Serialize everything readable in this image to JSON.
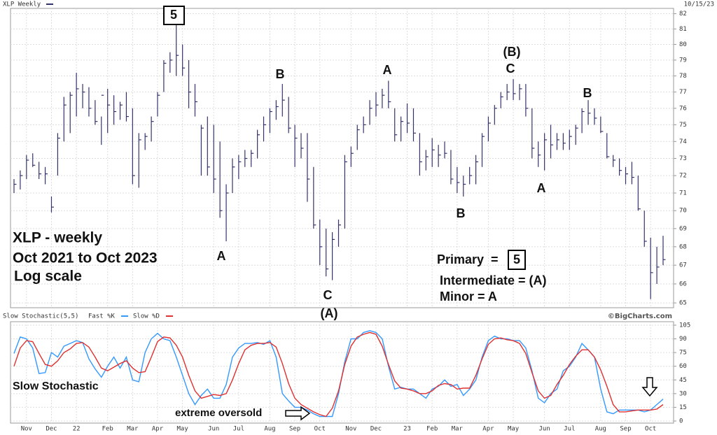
{
  "chart_data": [
    {
      "type": "ohlc",
      "title": "XLP Weekly",
      "date": "10/15/23",
      "log": true,
      "grid": true,
      "ylim": [
        64.75,
        82.35
      ],
      "yticks": [
        65,
        66,
        67,
        68,
        69,
        70,
        71,
        72,
        73,
        74,
        75,
        76,
        77,
        78,
        79,
        80,
        81,
        82
      ],
      "series": [
        {
          "name": "XLP Weekly",
          "color": "#33336b",
          "high": [
            71.8,
            72.3,
            73.2,
            73.3,
            72.8,
            72.5,
            70.8,
            74.5,
            76.7,
            77,
            78.2,
            77.5,
            77.3,
            76.5,
            75.5,
            77.2,
            76.8,
            76.4,
            77,
            76,
            74.5,
            74.5,
            75.5,
            77,
            79,
            79.5,
            81.4,
            80,
            79,
            77.5,
            75,
            75.5,
            75,
            74,
            71.5,
            73,
            73.2,
            73.5,
            73.5,
            74.7,
            75.5,
            76,
            76.5,
            77.5,
            76.7,
            75,
            74.5,
            74.5,
            72.5,
            69.5,
            69,
            68.8,
            69.5,
            73.2,
            73.7,
            75,
            75.5,
            76.5,
            77,
            77.2,
            77.7,
            76,
            75.5,
            76.3,
            76,
            74.5,
            73.5,
            74.2,
            73.8,
            74,
            73.5,
            72.5,
            72,
            72.5,
            73.2,
            74.5,
            75.5,
            76.2,
            77,
            77.5,
            77.8,
            77.5,
            77.5,
            76,
            74,
            74.5,
            75,
            74.5,
            74.5,
            74.7,
            75,
            76,
            76.5,
            76,
            75.5,
            74.5,
            73.2,
            73,
            72.5,
            72.8,
            72,
            70,
            68.5,
            68,
            68.6
          ],
          "low": [
            71,
            71.2,
            71.8,
            72.5,
            71.8,
            71.5,
            69.9,
            72,
            74,
            74.5,
            75.5,
            76,
            75.5,
            75,
            73.8,
            74.5,
            75,
            75.3,
            75.2,
            71.5,
            71.3,
            73.5,
            74,
            75.5,
            77,
            78.2,
            78,
            78,
            76,
            75.5,
            72,
            72,
            71,
            69.6,
            68.3,
            71,
            71.8,
            72.5,
            72.5,
            73,
            74,
            74.5,
            75.3,
            75.5,
            74.5,
            72.5,
            73,
            70.5,
            69,
            67,
            66.4,
            66.2,
            68,
            69,
            72.5,
            73.5,
            74.5,
            75,
            75.5,
            76,
            76,
            74,
            74,
            74.5,
            74,
            72,
            72.3,
            72.5,
            72.5,
            73,
            71.5,
            71,
            70.8,
            71.5,
            71.5,
            72.5,
            74,
            75,
            76,
            76.5,
            76.5,
            76.5,
            75.5,
            73,
            72.5,
            72.3,
            73,
            73.5,
            73.5,
            73.5,
            73.8,
            74.5,
            75,
            75,
            74.5,
            73,
            72.5,
            72,
            71.5,
            71.5,
            70,
            68,
            65.2,
            66,
            67
          ],
          "close": [
            71.5,
            72,
            72.9,
            72.6,
            72.1,
            72.1,
            70.2,
            74.2,
            76.2,
            76.8,
            77.2,
            77,
            76,
            75.2,
            76.8,
            76.2,
            75.8,
            76.2,
            75.5,
            72,
            74.1,
            74.3,
            75.2,
            76.8,
            78.8,
            79,
            79.3,
            78.5,
            77,
            76.4,
            74.8,
            72.5,
            71.8,
            70,
            71,
            72.5,
            72.8,
            73,
            73.3,
            74.4,
            75,
            75.8,
            76.1,
            76.5,
            74.8,
            74.2,
            73.6,
            71.8,
            69.2,
            68,
            66.8,
            68.4,
            69.2,
            72.8,
            73.3,
            74.7,
            75,
            76,
            76.2,
            76.8,
            76.4,
            74.4,
            75.2,
            75.1,
            74.5,
            72.8,
            73.1,
            73.5,
            73.2,
            73.3,
            71.8,
            71.6,
            71.5,
            72,
            72.8,
            74.3,
            75.1,
            76,
            76.7,
            77,
            76.9,
            77.2,
            76,
            73.6,
            73.2,
            74.1,
            73.8,
            74.1,
            73.9,
            74.3,
            74.8,
            75.8,
            75.7,
            75.4,
            74.6,
            73.1,
            72.9,
            72.3,
            72.1,
            71.9,
            70.1,
            68.3,
            66.6,
            66.9,
            67.3
          ]
        }
      ],
      "annotations": [
        "5",
        "B",
        "A",
        "(B)",
        "C",
        "B",
        "A",
        "C",
        "(A)",
        "B",
        "A",
        "XLP - weekly",
        "Oct 2021 to Oct 2023",
        "Log scale",
        "Primary  =",
        "5",
        "Intermediate = (A)",
        "Minor = A"
      ]
    },
    {
      "type": "line",
      "title": "Slow Stochastic(5,5)",
      "source": "©BigCharts.com",
      "grid": true,
      "ylim": [
        -2.3,
        108.8
      ],
      "yticks": [
        0,
        15,
        30,
        45,
        60,
        75,
        90,
        105
      ],
      "categories": [
        null,
        null,
        "Nov",
        null,
        null,
        null,
        "Dec",
        null,
        null,
        null,
        "22",
        null,
        null,
        null,
        null,
        "Feb",
        null,
        null,
        null,
        "Mar",
        null,
        null,
        null,
        "Apr",
        null,
        null,
        null,
        "May",
        null,
        null,
        null,
        null,
        "Jun",
        null,
        null,
        null,
        "Jul",
        null,
        null,
        null,
        null,
        "Aug",
        null,
        null,
        null,
        "Sep",
        null,
        null,
        null,
        "Oct",
        null,
        null,
        null,
        null,
        "Nov",
        null,
        null,
        null,
        "Dec",
        null,
        null,
        null,
        null,
        "23",
        null,
        null,
        null,
        "Feb",
        null,
        null,
        null,
        "Mar",
        null,
        null,
        null,
        null,
        "Apr",
        null,
        null,
        null,
        "May",
        null,
        null,
        null,
        null,
        "Jun",
        null,
        null,
        null,
        "Jul",
        null,
        null,
        null,
        null,
        "Aug",
        null,
        null,
        null,
        "Sep",
        null,
        null,
        null,
        "Oct",
        null,
        null
      ],
      "series": [
        {
          "name": "Fast %K",
          "color": "#3399ff",
          "values": [
            74,
            92,
            90,
            80,
            52,
            53,
            75,
            70,
            82,
            85,
            88,
            86,
            68,
            57,
            48,
            60,
            70,
            58,
            70,
            45,
            43,
            75,
            90,
            96,
            90,
            88,
            70,
            50,
            30,
            18,
            28,
            35,
            25,
            25,
            40,
            70,
            80,
            85,
            85,
            86,
            84,
            88,
            70,
            30,
            22,
            15,
            15,
            12,
            8,
            5,
            5,
            5,
            30,
            65,
            90,
            90,
            97,
            99,
            97,
            90,
            60,
            35,
            37,
            35,
            35,
            30,
            25,
            35,
            38,
            45,
            38,
            40,
            28,
            35,
            45,
            70,
            88,
            93,
            90,
            90,
            88,
            88,
            80,
            55,
            25,
            20,
            30,
            35,
            55,
            60,
            70,
            85,
            78,
            70,
            35,
            10,
            8,
            12,
            12,
            12,
            12,
            10,
            12,
            18,
            24
          ]
        },
        {
          "name": "Slow %D",
          "color": "#e03030",
          "values": [
            60,
            80,
            88,
            87,
            74,
            62,
            60,
            66,
            75,
            79,
            85,
            86,
            81,
            70,
            58,
            55,
            59,
            63,
            66,
            58,
            53,
            54,
            70,
            87,
            92,
            91,
            83,
            70,
            50,
            33,
            25,
            27,
            29,
            28,
            30,
            45,
            63,
            78,
            83,
            85,
            85,
            86,
            81,
            63,
            41,
            25,
            18,
            14,
            10,
            7,
            5,
            14,
            33,
            62,
            82,
            92,
            95,
            97,
            95,
            82,
            62,
            44,
            36,
            35,
            33,
            30,
            30,
            33,
            39,
            41,
            40,
            35,
            36,
            36,
            50,
            68,
            84,
            90,
            91,
            89,
            88,
            85,
            74,
            53,
            33,
            25,
            28,
            40,
            50,
            62,
            71,
            78,
            78,
            70,
            56,
            38,
            18,
            10,
            10,
            11,
            12,
            12,
            12,
            13,
            18
          ]
        }
      ],
      "annotations": [
        "Slow Stochastic",
        "extreme oversold"
      ]
    }
  ]
}
